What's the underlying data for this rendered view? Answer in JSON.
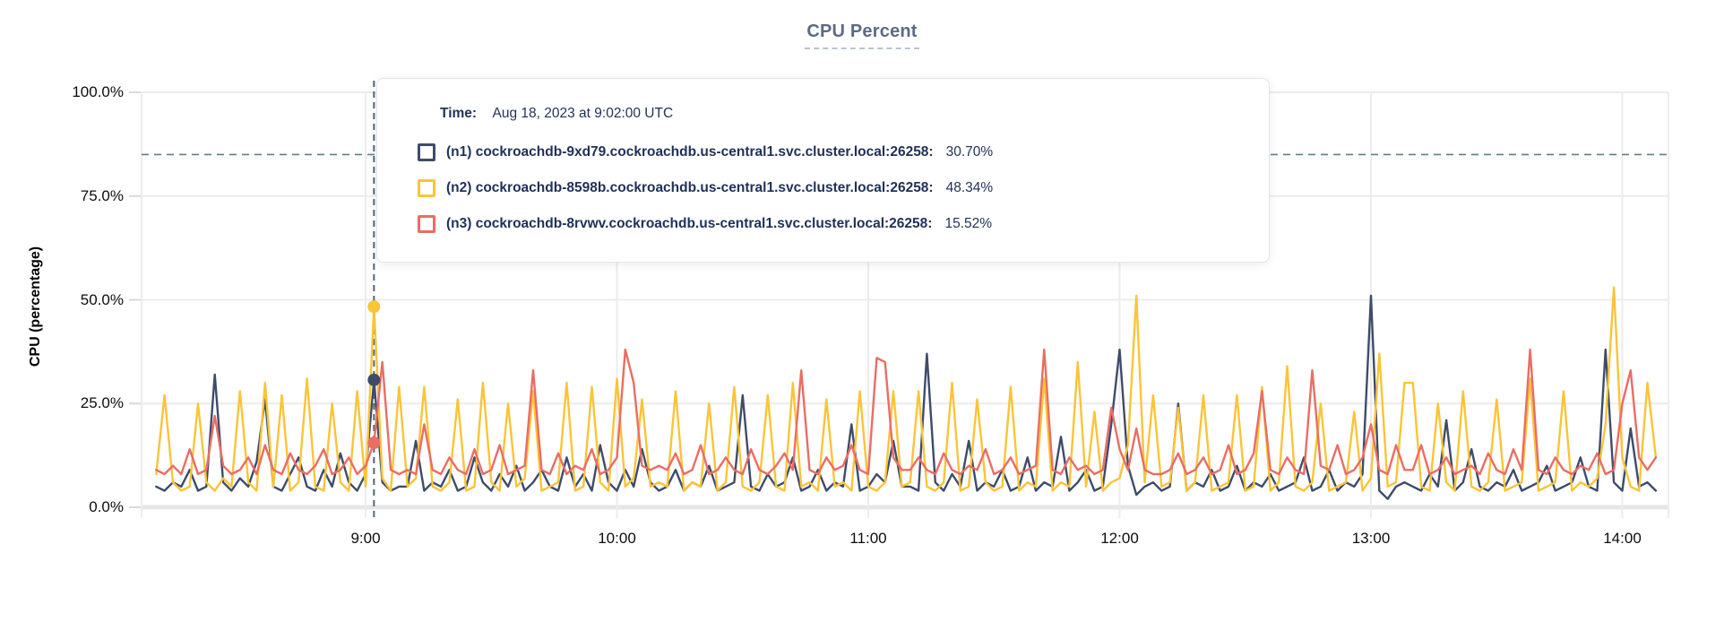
{
  "title": "CPU Percent",
  "axes": {
    "y_axis_label": "CPU (percentage)",
    "y_tick_labels_top_to_bottom": [
      "100.0%",
      "75.0%",
      "50.0%",
      "25.0%",
      "0.0%"
    ],
    "x_tick_labels": [
      "9:00",
      "10:00",
      "11:00",
      "12:00",
      "13:00",
      "14:00"
    ]
  },
  "tooltip": {
    "time_label": "Time:",
    "time_value": "Aug 18, 2023 at 9:02:00 UTC",
    "series": [
      {
        "id": "n1",
        "label": "(n1) cockroachdb-9xd79.cockroachdb.us-central1.svc.cluster.local:26258:",
        "value": "30.70%",
        "color": "#3e4c6a"
      },
      {
        "id": "n2",
        "label": "(n2) cockroachdb-8598b.cockroachdb.us-central1.svc.cluster.local:26258:",
        "value": "48.34%",
        "color": "#fbc437"
      },
      {
        "id": "n3",
        "label": "(n3) cockroachdb-8rvwv.cockroachdb.us-central1.svc.cluster.local:26258:",
        "value": "15.52%",
        "color": "#ea6d64"
      }
    ]
  },
  "colors": {
    "title": "#5c6b84",
    "grid": "#ececec",
    "zero_line": "#e6e6e6",
    "tick_dash": "#d9d9d9",
    "threshold_dash": "#5d7f90",
    "hover_line": "#4f6778",
    "tooltip_text": "#1e3159"
  },
  "chart_data": {
    "type": "line",
    "title": "CPU Percent",
    "xlabel": "",
    "ylabel": "CPU (percentage)",
    "ylim": [
      0,
      100
    ],
    "y_ticks": [
      0,
      25,
      50,
      75,
      100
    ],
    "x_start_minutes": 490,
    "x_step_minutes": 2,
    "x_ticks_minutes": [
      540,
      600,
      660,
      720,
      780,
      840
    ],
    "x_tick_labels": [
      "9:00",
      "10:00",
      "11:00",
      "12:00",
      "13:00",
      "14:00"
    ],
    "grid": true,
    "threshold_percent": 85,
    "hover_time_minutes": 542,
    "hover_time_text": "Aug 18, 2023 at 9:02:00 UTC",
    "hover_values": {
      "n1": 30.7,
      "n2": 48.34,
      "n3": 15.52
    },
    "series": [
      {
        "name": "(n1) cockroachdb-9xd79.cockroachdb.us-central1.svc.cluster.local:26258",
        "color": "#3e4c6a",
        "values": [
          5,
          4,
          6,
          5,
          9,
          4,
          5,
          32,
          6,
          4,
          7,
          5,
          11,
          26,
          5,
          4,
          8,
          12,
          5,
          4,
          9,
          5,
          13,
          6,
          4,
          8,
          30.7,
          6,
          4,
          5,
          5,
          16,
          4,
          6,
          5,
          9,
          4,
          5,
          12,
          6,
          4,
          8,
          5,
          10,
          4,
          6,
          9,
          5,
          4,
          12,
          5,
          8,
          4,
          15,
          6,
          4,
          9,
          5,
          14,
          6,
          4,
          5,
          9,
          4,
          6,
          5,
          10,
          4,
          5,
          6,
          27,
          5,
          4,
          8,
          5,
          6,
          12,
          4,
          5,
          9,
          4,
          6,
          5,
          20,
          4,
          5,
          8,
          6,
          16,
          5,
          5,
          4,
          37,
          6,
          4,
          8,
          5,
          16,
          4,
          6,
          5,
          9,
          4,
          5,
          12,
          4,
          6,
          5,
          17,
          4,
          6,
          9,
          4,
          5,
          20,
          38,
          10,
          3,
          5,
          6,
          4,
          5,
          25,
          4,
          6,
          5,
          9,
          4,
          5,
          10,
          4,
          6,
          5,
          8,
          4,
          5,
          6,
          12,
          4,
          5,
          9,
          4,
          6,
          5,
          8,
          51,
          4,
          2,
          5,
          6,
          5,
          4,
          8,
          5,
          21,
          4,
          6,
          14,
          5,
          4,
          6,
          5,
          9,
          4,
          5,
          6,
          10,
          4,
          5,
          6,
          12,
          5,
          4,
          38,
          6,
          4,
          19,
          5,
          6,
          4
        ]
      },
      {
        "name": "(n2) cockroachdb-8598b.cockroachdb.us-central1.svc.cluster.local:26258",
        "color": "#fbc437",
        "values": [
          8,
          27,
          6,
          4,
          5,
          25,
          6,
          4,
          7,
          5,
          28,
          6,
          4,
          30,
          5,
          27,
          4,
          6,
          31,
          5,
          4,
          25,
          6,
          4,
          28,
          5,
          48.34,
          7,
          4,
          29,
          5,
          7,
          29,
          5,
          4,
          6,
          26,
          4,
          5,
          30,
          6,
          4,
          25,
          5,
          7,
          28,
          4,
          5,
          6,
          30,
          4,
          5,
          29,
          6,
          4,
          31,
          5,
          7,
          26,
          5,
          6,
          5,
          28,
          4,
          6,
          5,
          25,
          4,
          6,
          29,
          5,
          4,
          6,
          27,
          5,
          4,
          30,
          5,
          6,
          4,
          26,
          5,
          6,
          4,
          28,
          5,
          4,
          6,
          28,
          5,
          6,
          28,
          5,
          4,
          6,
          30,
          4,
          5,
          26,
          6,
          4,
          5,
          29,
          4,
          6,
          5,
          31,
          4,
          6,
          5,
          35,
          5,
          23,
          4,
          6,
          7,
          15,
          51,
          6,
          27,
          5,
          6,
          24,
          4,
          6,
          27,
          4,
          5,
          6,
          27,
          4,
          5,
          29,
          4,
          6,
          34,
          5,
          4,
          6,
          25,
          4,
          5,
          6,
          23,
          4,
          7,
          37,
          5,
          6,
          30,
          30,
          5,
          4,
          25,
          6,
          4,
          28,
          5,
          4,
          6,
          26,
          4,
          5,
          6,
          31,
          4,
          5,
          6,
          28,
          4,
          6,
          5,
          7,
          20,
          53,
          12,
          5,
          4,
          30,
          12
        ]
      },
      {
        "name": "(n3) cockroachdb-8rvwv.cockroachdb.us-central1.svc.cluster.local:26258",
        "color": "#ea6d64",
        "values": [
          9,
          8,
          10,
          8,
          14,
          8,
          9,
          22,
          10,
          8,
          9,
          12,
          8,
          15,
          9,
          8,
          13,
          9,
          8,
          10,
          14,
          8,
          9,
          12,
          8,
          10,
          15.52,
          35,
          9,
          8,
          9,
          8,
          20,
          9,
          8,
          12,
          9,
          8,
          14,
          8,
          9,
          15,
          8,
          9,
          10,
          33,
          9,
          8,
          13,
          8,
          10,
          9,
          14,
          8,
          9,
          12,
          38,
          30,
          10,
          9,
          10,
          9,
          13,
          8,
          9,
          15,
          8,
          9,
          12,
          9,
          8,
          14,
          9,
          8,
          10,
          13,
          9,
          33,
          9,
          8,
          12,
          9,
          10,
          15,
          9,
          8,
          36,
          35,
          12,
          9,
          9,
          12,
          9,
          8,
          13,
          9,
          8,
          10,
          9,
          14,
          8,
          9,
          12,
          8,
          9,
          10,
          38,
          9,
          8,
          12,
          9,
          10,
          8,
          9,
          24,
          14,
          9,
          19,
          9,
          8,
          8,
          9,
          13,
          8,
          9,
          12,
          8,
          9,
          15,
          8,
          9,
          13,
          28,
          9,
          8,
          12,
          9,
          8,
          33,
          10,
          9,
          15,
          8,
          9,
          12,
          20,
          9,
          8,
          15,
          9,
          9,
          15,
          8,
          9,
          12,
          8,
          9,
          10,
          8,
          13,
          9,
          8,
          14,
          9,
          38,
          9,
          8,
          12,
          9,
          8,
          10,
          9,
          13,
          8,
          9,
          25,
          33,
          12,
          9,
          12
        ]
      }
    ],
    "legend_position": "tooltip-overlay"
  }
}
